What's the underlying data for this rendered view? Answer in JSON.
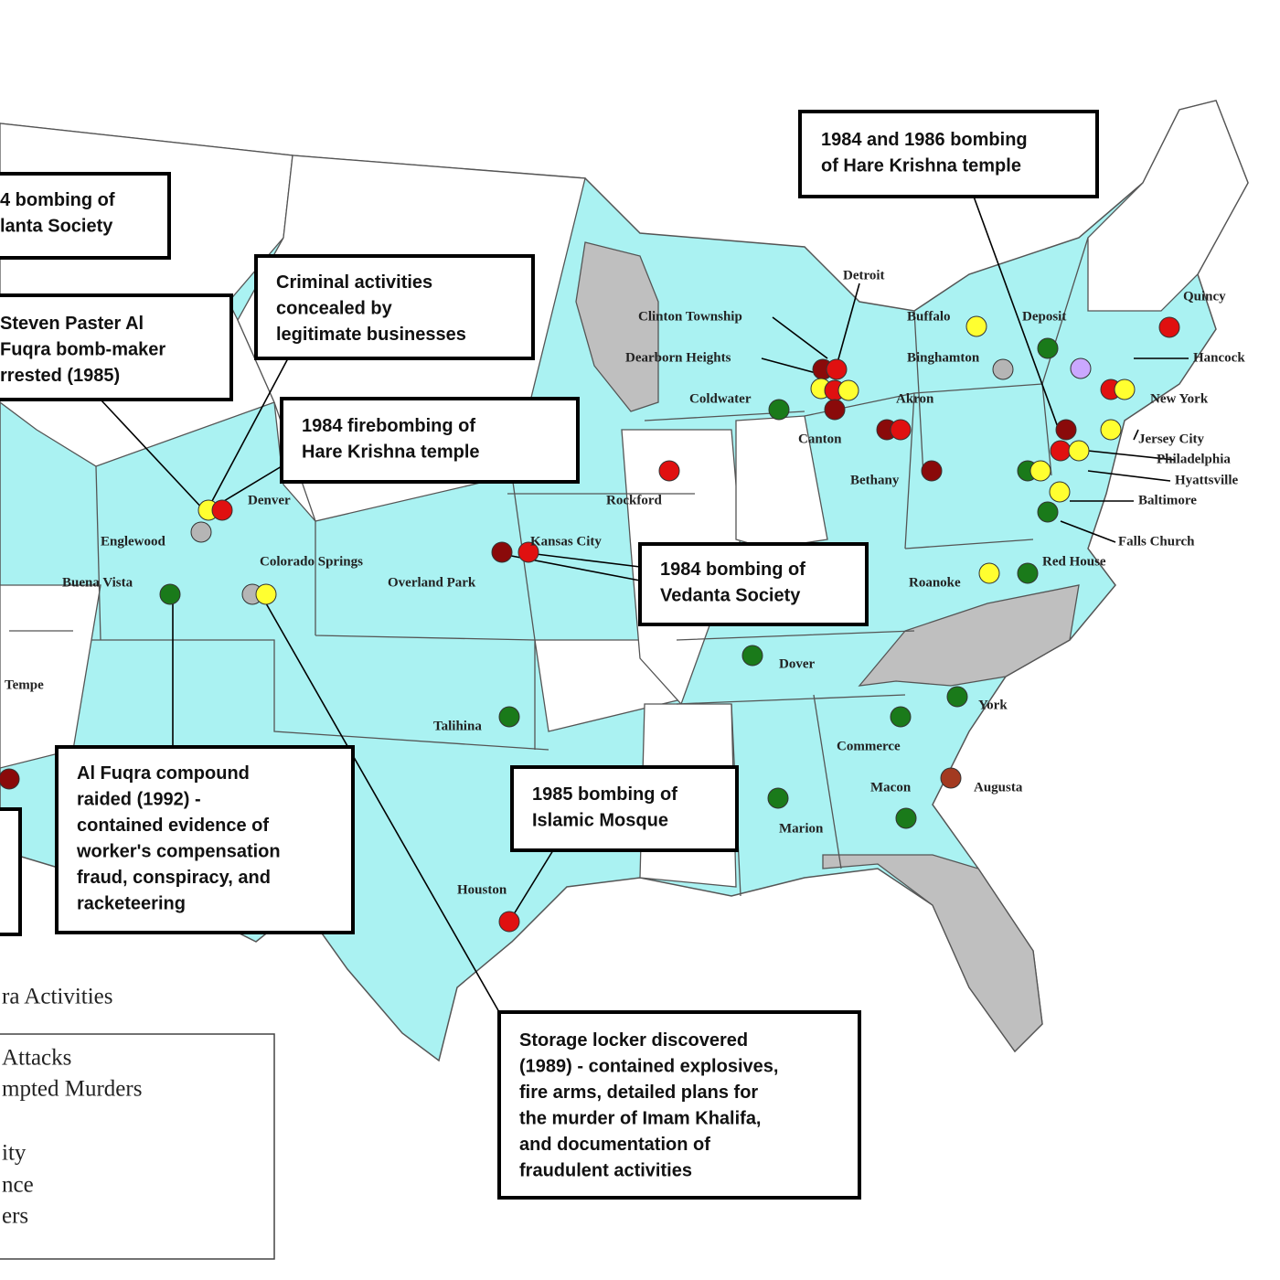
{
  "callouts": [
    {
      "lines": [
        "1984 and 1986 bombing",
        "of Hare Krishna temple"
      ]
    },
    {
      "lines": [
        "4 bombing of",
        "lanta Society"
      ]
    },
    {
      "lines": [
        "Criminal activities",
        "concealed by",
        "legitimate businesses"
      ]
    },
    {
      "lines": [
        "Steven Paster Al",
        "Fuqra bomb-maker",
        "rrested (1985)"
      ]
    },
    {
      "lines": [
        "1984 firebombing of",
        "Hare Krishna temple"
      ]
    },
    {
      "lines": [
        "1984 bombing of",
        "Vedanta Society"
      ]
    },
    {
      "lines": [
        "Al Fuqra compound",
        "raided (1992) -",
        "contained evidence of",
        "worker's compensation",
        "fraud, conspiracy, and",
        "racketeering"
      ]
    },
    {
      "lines": [
        "1985 bombing of",
        "Islamic Mosque"
      ]
    },
    {
      "lines": [
        "Storage locker discovered",
        "(1989) - contained explosives,",
        "fire arms, detailed plans for",
        "the murder of Imam Khalifa,",
        "and documentation of",
        "fraudulent activities"
      ]
    }
  ],
  "cities": [
    "Detroit",
    "Clinton Township",
    "Dearborn Heights",
    "Coldwater",
    "Canton",
    "Akron",
    "Bethany",
    "Buffalo",
    "Deposit",
    "Binghamton",
    "Quincy",
    "Hancock",
    "New York",
    "Jersey City",
    "Philadelphia",
    "Hyattsville",
    "Baltimore",
    "Falls Church",
    "Red House",
    "Roanoke",
    "Rockford",
    "Kansas City",
    "Overland Park",
    "Denver",
    "Englewood",
    "Colorado Springs",
    "Buena Vista",
    "Tempe",
    "Talihina",
    "Dover",
    "York",
    "Commerce",
    "Augusta",
    "Macon",
    "Marion",
    "Houston"
  ],
  "legend": {
    "title": "ra Activities",
    "items": [
      "Attacks",
      "mpted Murders",
      "ity",
      "nce",
      "ers"
    ]
  }
}
